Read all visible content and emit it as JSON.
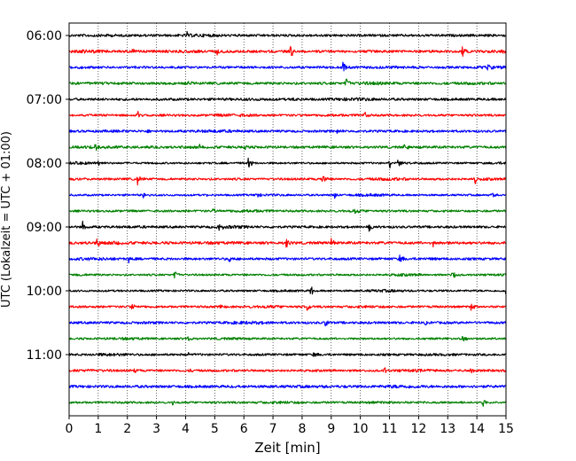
{
  "chart_data": {
    "type": "line",
    "subtype": "helicorder-seismogram",
    "title": "",
    "xlabel": "Zeit  [min]",
    "ylabel": "UTC (Lokalzeit = UTC + 01:00)",
    "xlim": [
      0,
      15
    ],
    "x_ticks": [
      "0",
      "1",
      "2",
      "3",
      "4",
      "5",
      "6",
      "7",
      "8",
      "9",
      "10",
      "11",
      "12",
      "13",
      "14",
      "15"
    ],
    "y_tick_labels": [
      "06:00",
      "07:00",
      "08:00",
      "09:00",
      "10:00",
      "11:00"
    ],
    "y_tick_rows": [
      0,
      4,
      8,
      12,
      16,
      20
    ],
    "vertical_grid": "dotted",
    "row_interval_minutes": 15,
    "trace_colors": [
      "#000000",
      "#ff0000",
      "#0000ff",
      "#008000"
    ],
    "rows": [
      {
        "start": "06:00",
        "events": [
          [
            4.05,
            0.5
          ]
        ]
      },
      {
        "start": "06:15",
        "events": [
          [
            2.15,
            0.6
          ],
          [
            5.05,
            0.9
          ],
          [
            7.6,
            1.1
          ],
          [
            13.5,
            0.8
          ]
        ]
      },
      {
        "start": "06:30",
        "events": [
          [
            9.4,
            1.0
          ],
          [
            14.3,
            0.7
          ]
        ]
      },
      {
        "start": "06:45",
        "events": [
          [
            4.1,
            0.6
          ],
          [
            9.5,
            0.9
          ]
        ]
      },
      {
        "start": "07:00",
        "events": [
          [
            7.7,
            0.7
          ]
        ]
      },
      {
        "start": "07:15",
        "events": [
          [
            2.35,
            0.9
          ],
          [
            10.15,
            0.6
          ]
        ]
      },
      {
        "start": "07:30",
        "events": [
          [
            2.7,
            0.5
          ],
          [
            9.2,
            0.5
          ]
        ]
      },
      {
        "start": "07:45",
        "events": [
          [
            0.9,
            0.9
          ],
          [
            4.5,
            0.6
          ],
          [
            6.0,
            0.6
          ],
          [
            11.5,
            0.9
          ]
        ]
      },
      {
        "start": "08:00",
        "events": [
          [
            0.25,
            0.6
          ],
          [
            1.0,
            0.6
          ],
          [
            6.15,
            0.9
          ],
          [
            11.0,
            0.9
          ],
          [
            11.3,
            0.7
          ]
        ]
      },
      {
        "start": "08:15",
        "events": [
          [
            2.35,
            0.9
          ],
          [
            8.7,
            0.9
          ],
          [
            13.9,
            1.0
          ]
        ]
      },
      {
        "start": "08:30",
        "events": [
          [
            2.55,
            0.6
          ],
          [
            4.65,
            0.7
          ],
          [
            6.4,
            0.7
          ],
          [
            9.1,
            0.8
          ],
          [
            14.5,
            0.7
          ]
        ]
      },
      {
        "start": "08:45",
        "events": [
          [
            4.9,
            0.8
          ],
          [
            9.8,
            0.7
          ]
        ]
      },
      {
        "start": "09:00",
        "events": [
          [
            0.45,
            1.0
          ],
          [
            5.15,
            0.7
          ],
          [
            10.3,
            1.0
          ]
        ]
      },
      {
        "start": "09:15",
        "events": [
          [
            0.95,
            0.6
          ],
          [
            7.45,
            0.9
          ],
          [
            9.0,
            1.1
          ],
          [
            12.5,
            0.6
          ]
        ]
      },
      {
        "start": "09:30",
        "events": [
          [
            2.05,
            0.8
          ],
          [
            5.5,
            0.6
          ],
          [
            11.35,
            0.8
          ]
        ]
      },
      {
        "start": "09:45",
        "events": [
          [
            3.6,
            0.8
          ],
          [
            13.15,
            0.7
          ]
        ]
      },
      {
        "start": "10:00",
        "events": [
          [
            8.3,
            1.0
          ],
          [
            15.0,
            0.9
          ]
        ]
      },
      {
        "start": "10:15",
        "events": [
          [
            2.15,
            0.6
          ],
          [
            5.2,
            0.5
          ],
          [
            8.15,
            0.9
          ],
          [
            13.8,
            0.7
          ]
        ]
      },
      {
        "start": "10:30",
        "events": [
          [
            8.8,
            0.5
          ],
          [
            12.2,
            0.4
          ]
        ]
      },
      {
        "start": "10:45",
        "events": [
          [
            4.05,
            0.6
          ],
          [
            13.5,
            0.7
          ]
        ]
      },
      {
        "start": "11:00",
        "events": [
          [
            4.1,
            0.5
          ],
          [
            8.4,
            0.5
          ]
        ]
      },
      {
        "start": "11:15",
        "events": [
          [
            2.2,
            0.6
          ],
          [
            4.15,
            0.4
          ],
          [
            10.8,
            0.6
          ],
          [
            13.8,
            0.5
          ]
        ]
      },
      {
        "start": "11:30",
        "events": [
          [
            5.7,
            0.6
          ],
          [
            8.6,
            0.6
          ]
        ]
      },
      {
        "start": "11:45",
        "events": [
          [
            3.55,
            0.4
          ],
          [
            14.2,
            0.6
          ]
        ]
      }
    ]
  }
}
